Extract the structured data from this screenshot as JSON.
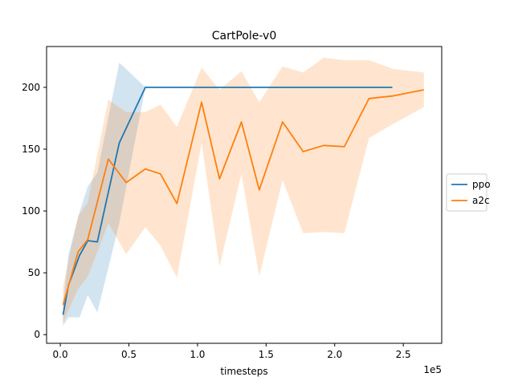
{
  "chart_data": {
    "type": "line",
    "title": "CartPole-v0",
    "xlabel": "timesteps",
    "ylabel": "",
    "x_scale_note": "1e5",
    "xlim": [
      -0.1,
      2.78
    ],
    "ylim": [
      -7,
      233
    ],
    "x_ticks": [
      0.0,
      0.5,
      1.0,
      1.5,
      2.0,
      2.5
    ],
    "x_tick_labels": [
      "0.0",
      "0.5",
      "1.0",
      "1.5",
      "2.0",
      "2.5"
    ],
    "y_ticks": [
      0,
      50,
      100,
      150,
      200
    ],
    "y_tick_labels": [
      "0",
      "50",
      "100",
      "150",
      "200"
    ],
    "grid": false,
    "legend_position": "right-outside",
    "series": [
      {
        "name": "ppo",
        "color": "#1f77b4",
        "x": [
          0.02,
          0.06,
          0.14,
          0.2,
          0.27,
          0.43,
          0.62,
          2.42
        ],
        "y": [
          16,
          40,
          64,
          76,
          75,
          155,
          200,
          200
        ],
        "lower": [
          7,
          14,
          14,
          32,
          18,
          90,
          200,
          200
        ],
        "upper": [
          26,
          65,
          99,
          120,
          131,
          220,
          200,
          200
        ]
      },
      {
        "name": "a2c",
        "color": "#ff7f0e",
        "x": [
          0.02,
          0.13,
          0.2,
          0.35,
          0.48,
          0.62,
          0.73,
          0.85,
          1.03,
          1.16,
          1.32,
          1.45,
          1.62,
          1.77,
          1.92,
          2.07,
          2.25,
          2.42,
          2.65
        ],
        "y": [
          24,
          67,
          77,
          142,
          123,
          134,
          130,
          106,
          188,
          126,
          172,
          117,
          172,
          148,
          153,
          152,
          191,
          193,
          198
        ],
        "lower": [
          10,
          37,
          47,
          90,
          65,
          87,
          72,
          46,
          155,
          55,
          130,
          47,
          125,
          82,
          83,
          82,
          159,
          170,
          184
        ],
        "upper": [
          39,
          96,
          107,
          190,
          180,
          180,
          186,
          168,
          216,
          198,
          213,
          188,
          217,
          212,
          224,
          222,
          222,
          215,
          212
        ]
      }
    ]
  }
}
